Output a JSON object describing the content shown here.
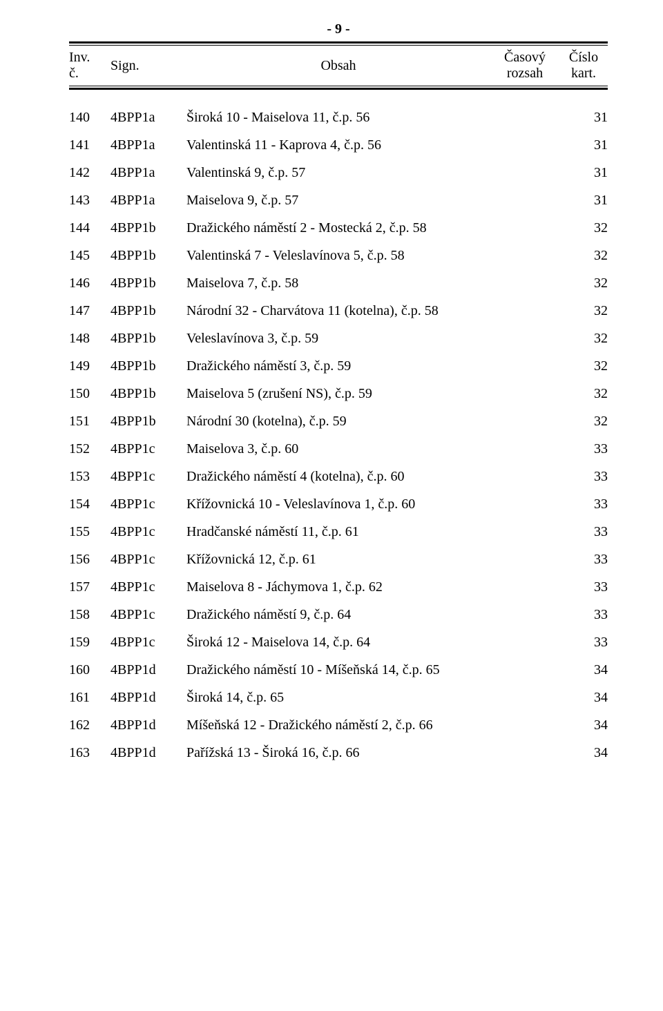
{
  "page_label": "- 9 -",
  "header": {
    "inv_top": "Inv.",
    "inv_bot": "č.",
    "sign": "Sign.",
    "obsah": "Obsah",
    "casovy_top": "Časový",
    "casovy_bot": "rozsah",
    "cislo_top": "Číslo",
    "cislo_bot": "kart."
  },
  "rows": [
    {
      "inv": "140",
      "sign": "4BPP1a",
      "obsah": "Široká 10 - Maiselova 11, č.p. 56",
      "cislo": "31"
    },
    {
      "inv": "141",
      "sign": "4BPP1a",
      "obsah": "Valentinská 11 - Kaprova 4, č.p. 56",
      "cislo": "31"
    },
    {
      "inv": "142",
      "sign": "4BPP1a",
      "obsah": "Valentinská 9, č.p. 57",
      "cislo": "31"
    },
    {
      "inv": "143",
      "sign": "4BPP1a",
      "obsah": "Maiselova 9, č.p. 57",
      "cislo": "31"
    },
    {
      "inv": "144",
      "sign": "4BPP1b",
      "obsah": "Dražického náměstí 2 - Mostecká 2, č.p. 58",
      "cislo": "32"
    },
    {
      "inv": "145",
      "sign": "4BPP1b",
      "obsah": "Valentinská 7 - Veleslavínova 5, č.p. 58",
      "cislo": "32"
    },
    {
      "inv": "146",
      "sign": "4BPP1b",
      "obsah": "Maiselova 7, č.p. 58",
      "cislo": "32"
    },
    {
      "inv": "147",
      "sign": "4BPP1b",
      "obsah": "Národní 32 - Charvátova 11 (kotelna), č.p. 58",
      "cislo": "32"
    },
    {
      "inv": "148",
      "sign": "4BPP1b",
      "obsah": "Veleslavínova 3, č.p. 59",
      "cislo": "32"
    },
    {
      "inv": "149",
      "sign": "4BPP1b",
      "obsah": "Dražického náměstí 3, č.p. 59",
      "cislo": "32"
    },
    {
      "inv": "150",
      "sign": "4BPP1b",
      "obsah": "Maiselova 5 (zrušení NS), č.p. 59",
      "cislo": "32"
    },
    {
      "inv": "151",
      "sign": "4BPP1b",
      "obsah": "Národní 30 (kotelna), č.p. 59",
      "cislo": "32"
    },
    {
      "inv": "152",
      "sign": "4BPP1c",
      "obsah": "Maiselova 3, č.p. 60",
      "cislo": "33"
    },
    {
      "inv": "153",
      "sign": "4BPP1c",
      "obsah": "Dražického náměstí 4 (kotelna), č.p. 60",
      "cislo": "33"
    },
    {
      "inv": "154",
      "sign": "4BPP1c",
      "obsah": "Křížovnická 10 - Veleslavínova 1, č.p. 60",
      "cislo": "33"
    },
    {
      "inv": "155",
      "sign": "4BPP1c",
      "obsah": "Hradčanské náměstí 11, č.p. 61",
      "cislo": "33"
    },
    {
      "inv": "156",
      "sign": "4BPP1c",
      "obsah": "Křížovnická 12, č.p. 61",
      "cislo": "33"
    },
    {
      "inv": "157",
      "sign": "4BPP1c",
      "obsah": "Maiselova 8 - Jáchymova 1, č.p. 62",
      "cislo": "33"
    },
    {
      "inv": "158",
      "sign": "4BPP1c",
      "obsah": "Dražického náměstí 9, č.p. 64",
      "cislo": "33"
    },
    {
      "inv": "159",
      "sign": "4BPP1c",
      "obsah": "Široká 12 - Maiselova 14, č.p. 64",
      "cislo": "33"
    },
    {
      "inv": "160",
      "sign": "4BPP1d",
      "obsah": "Dražického náměstí 10 - Míšeňská 14, č.p. 65",
      "cislo": "34"
    },
    {
      "inv": "161",
      "sign": "4BPP1d",
      "obsah": "Široká 14, č.p. 65",
      "cislo": "34"
    },
    {
      "inv": "162",
      "sign": "4BPP1d",
      "obsah": "Míšeňská 12 - Dražického náměstí 2, č.p. 66",
      "cislo": "34"
    },
    {
      "inv": "163",
      "sign": "4BPP1d",
      "obsah": "Pařížská 13 - Široká 16, č.p. 66",
      "cislo": "34"
    }
  ]
}
